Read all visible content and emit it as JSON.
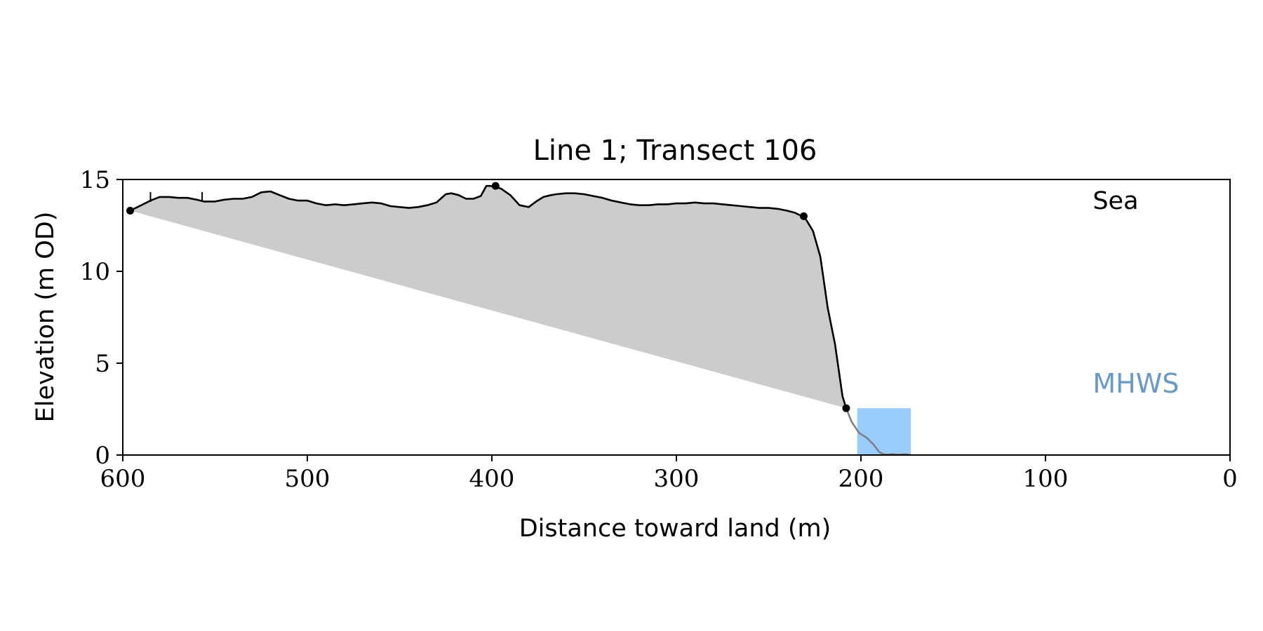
{
  "chart_data": {
    "type": "area",
    "title": "Line 1; Transect 106",
    "xlabel": "Distance toward land (m)",
    "ylabel": "Elevation (m OD)",
    "xlim": [
      600,
      0
    ],
    "ylim": [
      0,
      15
    ],
    "x_reversed": true,
    "grid": false,
    "xticks": [
      "600",
      "500",
      "400",
      "300",
      "200",
      "100",
      "0"
    ],
    "xtick_values": [
      600,
      500,
      400,
      300,
      200,
      100,
      0
    ],
    "yticks": [
      "0",
      "5",
      "10",
      "15"
    ],
    "ytick_values": [
      0,
      5,
      10,
      15
    ],
    "colors": {
      "profile": "#000000",
      "submerged_profile": "#808080",
      "fill": "#cccccc",
      "water": "#99ccff",
      "mhws_label": "#6699cc"
    },
    "series": [
      {
        "role": "profile",
        "x": [
          596,
          590,
          585,
          580,
          575,
          570,
          565,
          560,
          556,
          550,
          545,
          540,
          535,
          530,
          525,
          520,
          515,
          510,
          505,
          500,
          495,
          490,
          485,
          480,
          475,
          470,
          465,
          460,
          455,
          450,
          445,
          440,
          435,
          430,
          425,
          422,
          418,
          414,
          410,
          406,
          403,
          401,
          398,
          395,
          390,
          385,
          380,
          376,
          372,
          368,
          365,
          360,
          355,
          350,
          345,
          340,
          335,
          330,
          325,
          320,
          315,
          310,
          305,
          300,
          295,
          290,
          285,
          280,
          275,
          270,
          265,
          260,
          255,
          250,
          245,
          240,
          236,
          233,
          231,
          229,
          226,
          222,
          218,
          214,
          210,
          208
        ],
        "y": [
          13.3,
          13.6,
          13.85,
          14.05,
          14.05,
          14.0,
          14.0,
          13.9,
          13.8,
          13.8,
          13.9,
          13.95,
          13.95,
          14.05,
          14.3,
          14.35,
          14.15,
          13.95,
          13.85,
          13.85,
          13.7,
          13.6,
          13.65,
          13.6,
          13.65,
          13.7,
          13.75,
          13.7,
          13.55,
          13.5,
          13.45,
          13.5,
          13.6,
          13.75,
          14.2,
          14.25,
          14.15,
          13.95,
          13.95,
          14.1,
          14.65,
          14.65,
          14.6,
          14.5,
          14.15,
          13.6,
          13.5,
          13.8,
          14.05,
          14.15,
          14.2,
          14.25,
          14.25,
          14.2,
          14.1,
          14.0,
          13.85,
          13.75,
          13.65,
          13.6,
          13.6,
          13.65,
          13.65,
          13.7,
          13.7,
          13.75,
          13.7,
          13.7,
          13.65,
          13.6,
          13.55,
          13.5,
          13.45,
          13.45,
          13.4,
          13.3,
          13.2,
          13.05,
          13.0,
          12.7,
          12.2,
          10.8,
          8.0,
          6.0,
          3.2,
          2.55
        ]
      },
      {
        "role": "submerged-profile",
        "x": [
          208,
          205,
          201,
          197,
          193,
          190,
          187,
          183,
          180,
          176,
          173
        ],
        "y": [
          2.55,
          1.8,
          1.2,
          0.95,
          0.55,
          0.15,
          0.02,
          0.05,
          0.02,
          0.05,
          0.0
        ]
      }
    ],
    "markers": [
      {
        "x": 596,
        "y": 13.3
      },
      {
        "x": 398,
        "y": 14.65
      },
      {
        "x": 231,
        "y": 13.0
      },
      {
        "x": 208,
        "y": 2.55
      }
    ],
    "fill_polygon": {
      "from": {
        "x": 596,
        "y": 13.3
      },
      "to": {
        "x": 208,
        "y": 2.55
      }
    },
    "water_box": {
      "x0": 202,
      "x1": 173,
      "y0": 0,
      "y1": 2.55
    },
    "top_ticks": [
      585,
      557
    ],
    "annotations": [
      {
        "text": "Sea",
        "x": 62,
        "y": 13.4,
        "role": "sea"
      },
      {
        "text": "MHWS",
        "x": 51,
        "y": 3.4,
        "role": "mhws"
      }
    ]
  }
}
